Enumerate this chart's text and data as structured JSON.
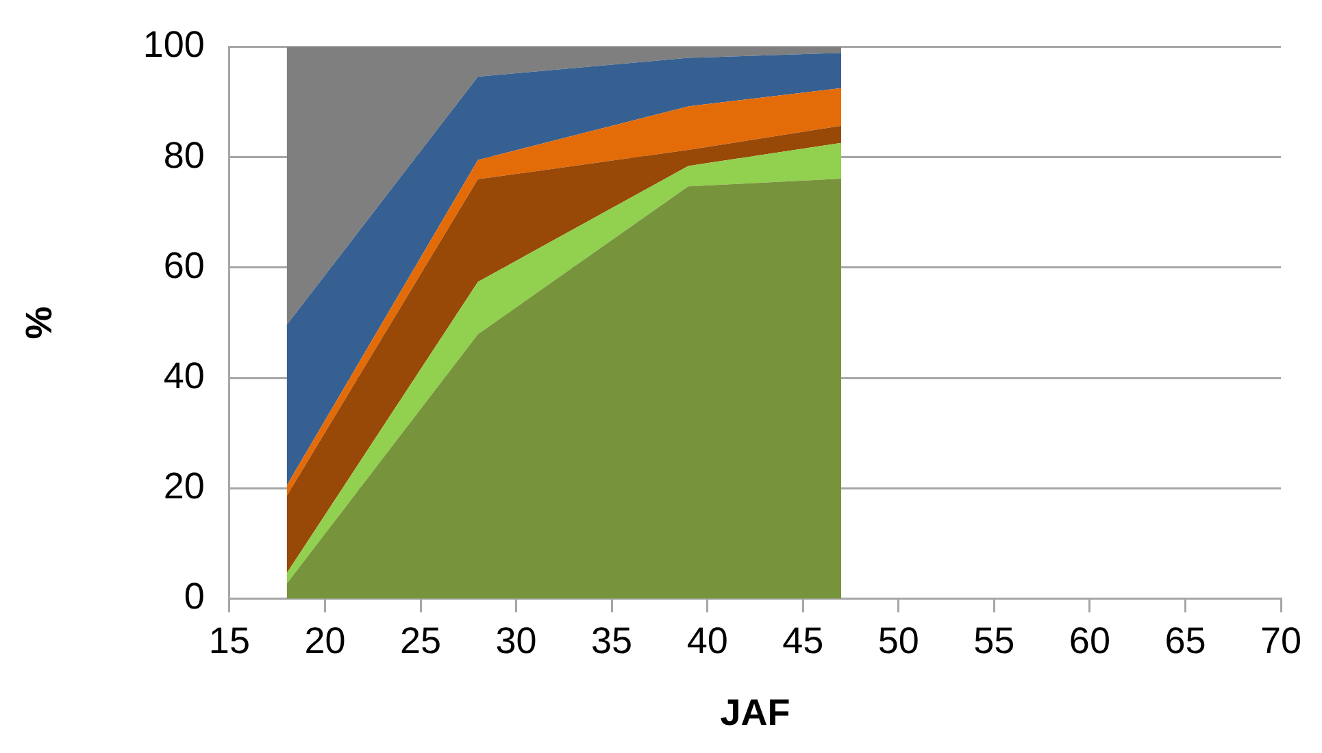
{
  "chart_data": {
    "type": "area",
    "stacked": true,
    "xlabel": "JAF",
    "ylabel": "%",
    "x": [
      18,
      28,
      39,
      47
    ],
    "series": [
      {
        "color": "#77933c",
        "values": [
          2.7,
          47.9,
          74.7,
          76.1
        ]
      },
      {
        "color": "#92d050",
        "values": [
          1.9,
          9.5,
          3.7,
          6.5
        ]
      },
      {
        "color": "#984807",
        "values": [
          14.0,
          18.6,
          2.9,
          3.1
        ]
      },
      {
        "color": "#e36c09",
        "values": [
          1.9,
          3.5,
          7.9,
          6.8
        ]
      },
      {
        "color": "#376092",
        "values": [
          29.1,
          15.1,
          8.8,
          6.4
        ]
      },
      {
        "color": "#7f7f7f",
        "values": [
          50.4,
          5.4,
          2.0,
          1.1
        ]
      }
    ],
    "xlim": [
      15,
      70
    ],
    "xticks": [
      15,
      20,
      25,
      30,
      35,
      40,
      45,
      50,
      55,
      60,
      65,
      70
    ],
    "ylim": [
      0,
      100
    ],
    "yticks": [
      0,
      20,
      40,
      60,
      80,
      100
    ],
    "grid": "y",
    "legend": false,
    "marker": "none"
  }
}
